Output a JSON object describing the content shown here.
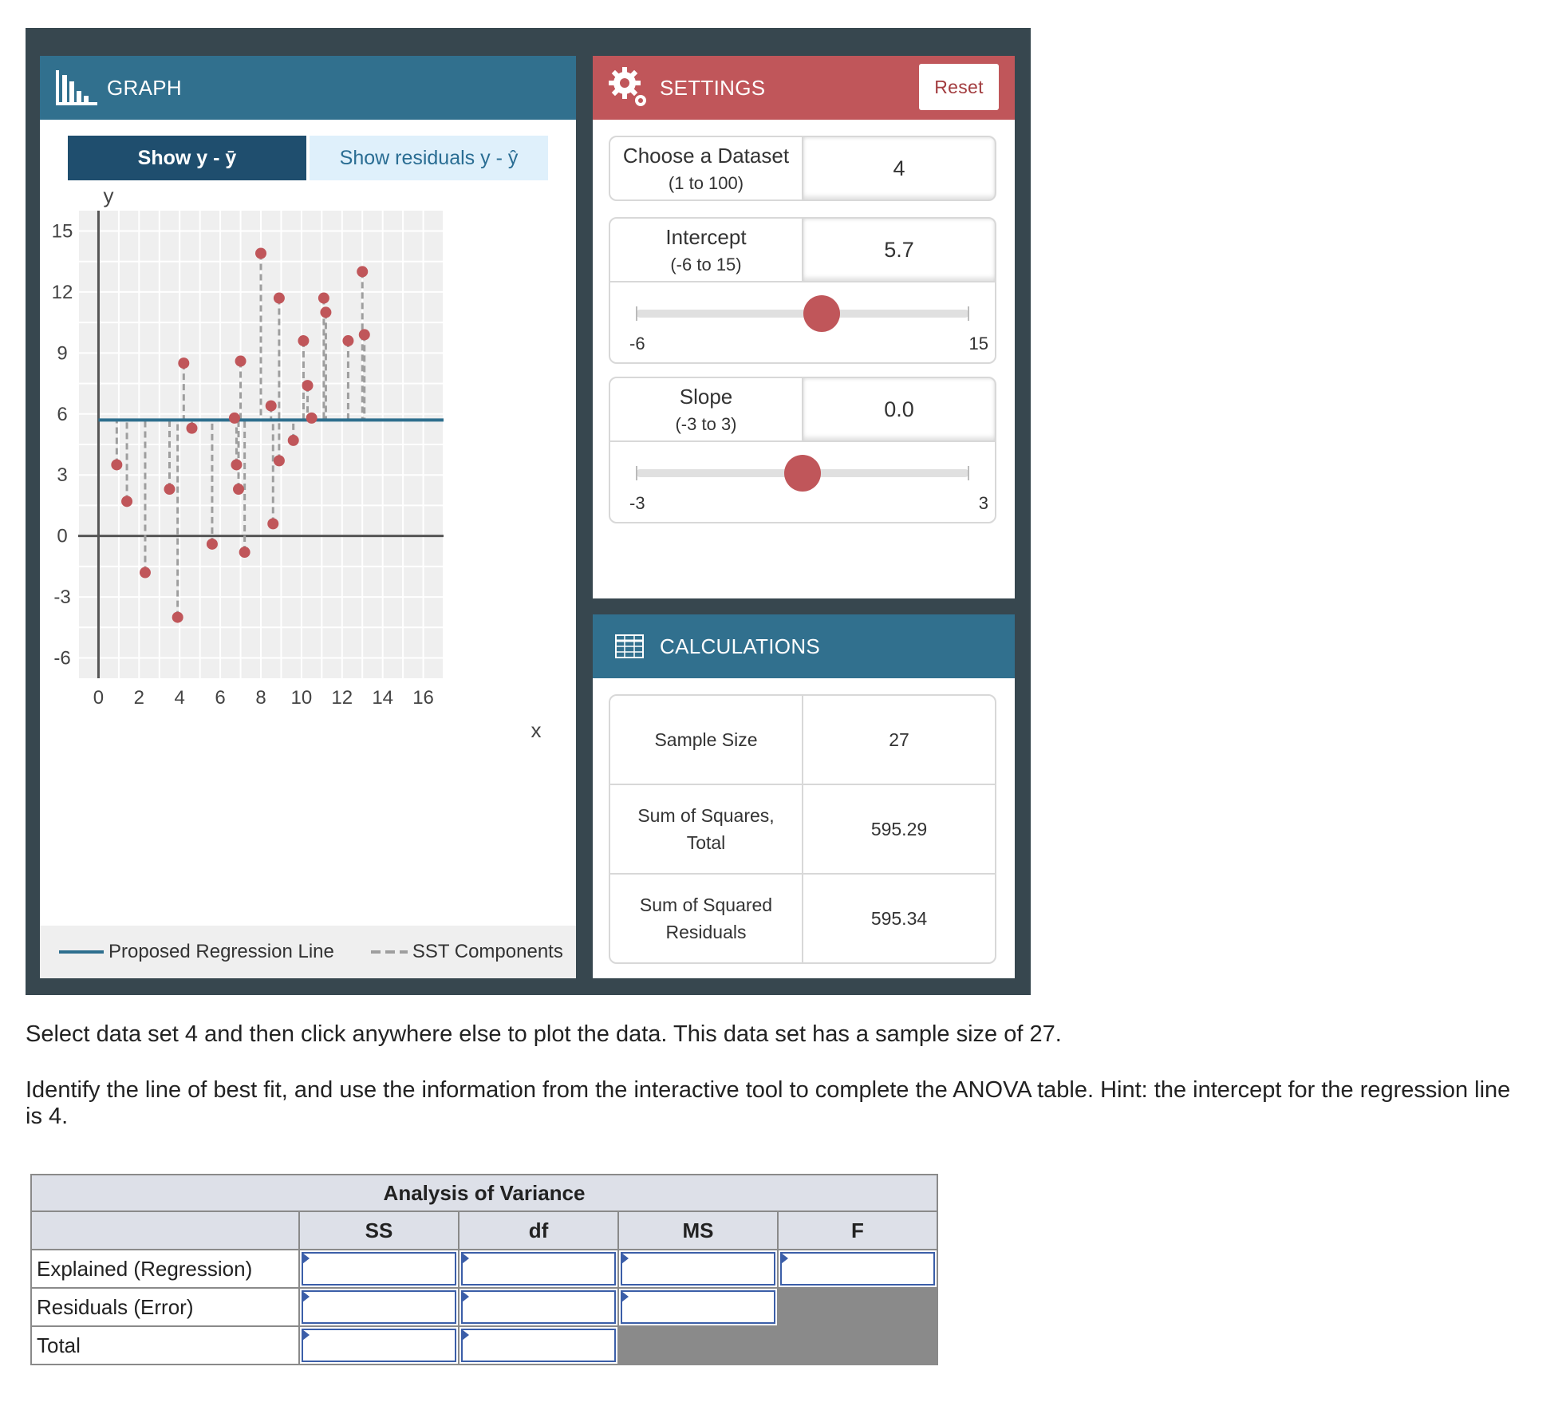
{
  "graph": {
    "title": "GRAPH",
    "toggle_a": "Show y - ȳ",
    "toggle_b": "Show residuals y - ŷ",
    "y_label": "y",
    "x_label": "x",
    "legend_line": "Proposed Regression Line",
    "legend_sst": "SST Components"
  },
  "settings": {
    "title": "SETTINGS",
    "reset_label": "Reset",
    "dataset": {
      "label": "Choose a Dataset",
      "range": "(1 to 100)",
      "value": "4"
    },
    "intercept": {
      "label": "Intercept",
      "range": "(-6 to 15)",
      "value": "5.7",
      "min_label": "-6",
      "max_label": "15",
      "min": -6,
      "max": 15,
      "current": 5.7
    },
    "slope": {
      "label": "Slope",
      "range": "(-3 to 3)",
      "value": "0.0",
      "min_label": "-3",
      "max_label": "3",
      "min": -3,
      "max": 3,
      "current": 0.0
    }
  },
  "calculations": {
    "title": "CALCULATIONS",
    "rows": [
      {
        "label": "Sample Size",
        "value": "27"
      },
      {
        "label": "Sum of Squares,\nTotal",
        "value": "595.29"
      },
      {
        "label": "Sum of Squared\nResiduals",
        "value": "595.34"
      }
    ]
  },
  "instructions": {
    "p1": "Select data set 4 and then click anywhere else to plot the data. This data set has a sample size of 27.",
    "p2": "Identify the line of best fit, and use the information from the interactive tool to complete the ANOVA table. Hint: the intercept for the regression line is 4."
  },
  "anova": {
    "title": "Analysis of Variance",
    "columns": [
      "SS",
      "df",
      "MS",
      "F"
    ],
    "rows": [
      "Explained (Regression)",
      "Residuals (Error)",
      "Total"
    ]
  },
  "colors": {
    "header_blue": "#31708e",
    "header_red": "#c0565a",
    "point": "#c0565a",
    "regression_line": "#2e6f8e",
    "frame": "#37474f"
  },
  "chart_data": {
    "type": "scatter",
    "title": "",
    "xlabel": "x",
    "ylabel": "y",
    "xlim": [
      -1,
      17
    ],
    "ylim": [
      -7,
      16
    ],
    "x_ticks": [
      0,
      2,
      4,
      6,
      8,
      10,
      12,
      14,
      16
    ],
    "y_ticks": [
      -6,
      -3,
      0,
      3,
      6,
      9,
      12,
      15
    ],
    "grid": true,
    "regression_line": {
      "intercept": 5.7,
      "slope": 0.0
    },
    "points": [
      [
        0.9,
        3.5
      ],
      [
        1.4,
        1.7
      ],
      [
        2.3,
        -1.8
      ],
      [
        3.5,
        2.3
      ],
      [
        3.9,
        -4.0
      ],
      [
        4.2,
        8.5
      ],
      [
        4.6,
        5.3
      ],
      [
        5.6,
        -0.4
      ],
      [
        6.7,
        5.8
      ],
      [
        6.8,
        3.5
      ],
      [
        6.9,
        2.3
      ],
      [
        7.0,
        8.6
      ],
      [
        7.2,
        -0.8
      ],
      [
        8.0,
        13.9
      ],
      [
        8.5,
        6.4
      ],
      [
        8.6,
        0.6
      ],
      [
        8.9,
        11.7
      ],
      [
        8.9,
        3.7
      ],
      [
        9.6,
        4.7
      ],
      [
        10.1,
        9.6
      ],
      [
        10.3,
        7.4
      ],
      [
        10.5,
        5.8
      ],
      [
        11.1,
        11.7
      ],
      [
        11.2,
        11.0
      ],
      [
        12.3,
        9.6
      ],
      [
        13.0,
        13.0
      ],
      [
        13.1,
        9.9
      ]
    ]
  }
}
